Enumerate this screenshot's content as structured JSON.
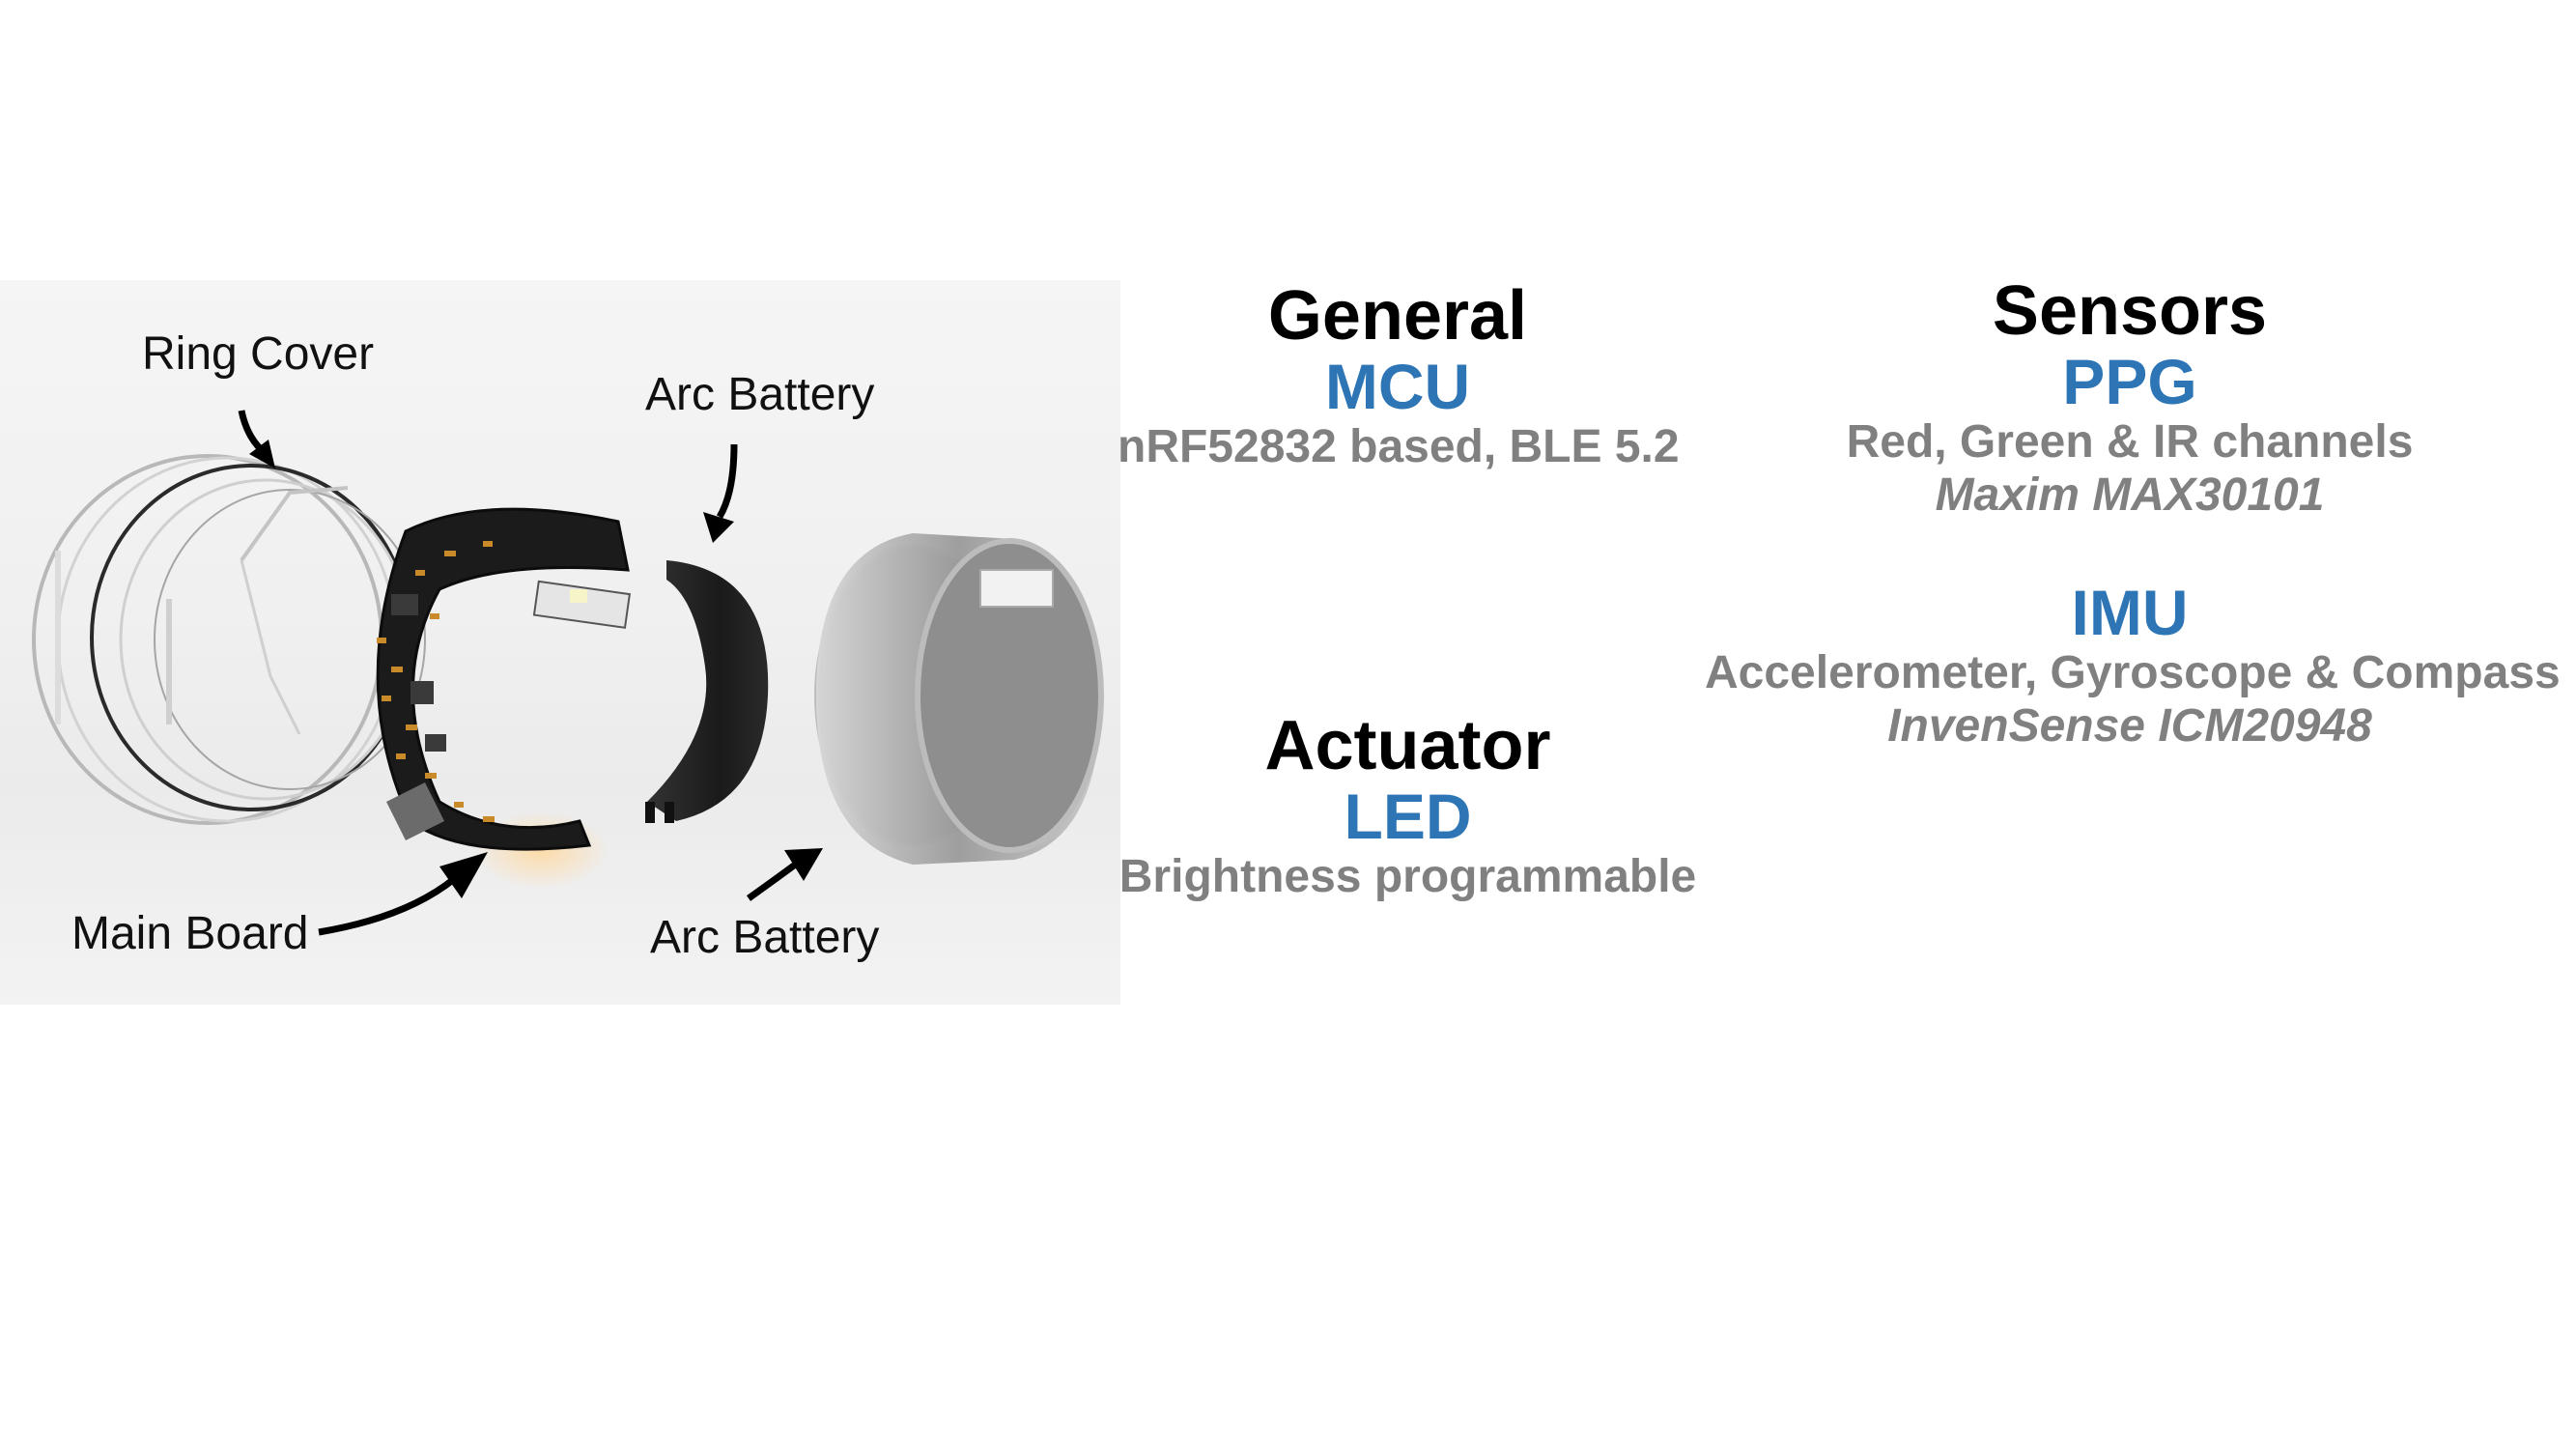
{
  "colors": {
    "heading": "#000000",
    "accent": "#2e75b6",
    "detail": "#808080"
  },
  "photo": {
    "callouts": {
      "ring_cover": "Ring Cover",
      "arc_battery_top": "Arc Battery",
      "main_board": "Main Board",
      "arc_battery_bottom": "Arc Battery"
    }
  },
  "general": {
    "title": "General",
    "mcu": {
      "name": "MCU",
      "description": "nRF52832 based, BLE 5.2"
    }
  },
  "actuator": {
    "title": "Actuator",
    "led": {
      "name": "LED",
      "description": "Brightness programmable"
    }
  },
  "sensors": {
    "title": "Sensors",
    "ppg": {
      "name": "PPG",
      "description": "Red, Green & IR channels",
      "part": "Maxim MAX30101"
    },
    "imu": {
      "name": "IMU",
      "description": "Accelerometer, Gyroscope & Compass",
      "part": "InvenSense ICM20948"
    }
  }
}
